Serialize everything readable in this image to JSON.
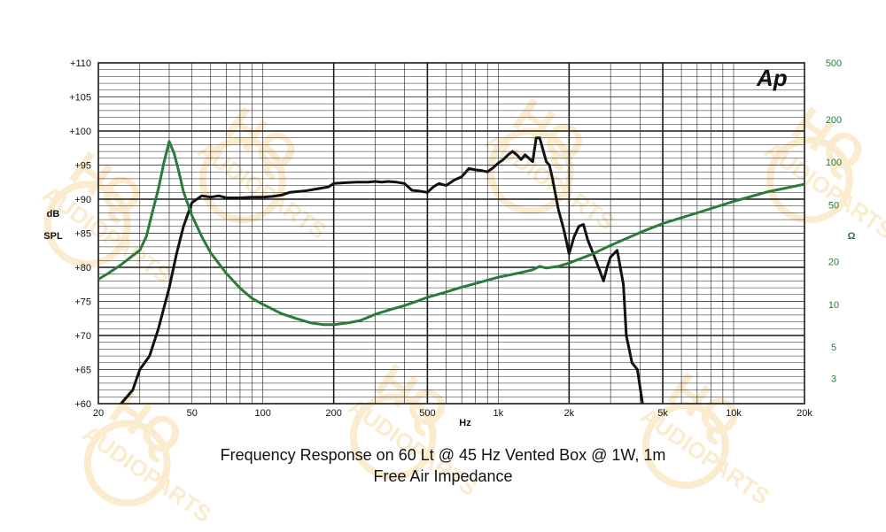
{
  "chart_data": {
    "type": "line",
    "logo": "Ap",
    "watermark": "HQ AUDIOPARTS",
    "caption_line1": "Frequency Response on 60 Lt @ 45 Hz Vented Box @ 1W, 1m",
    "caption_line2": "Free Air Impedance",
    "x_unit_label": "Hz",
    "x_scale": "log",
    "xlim": [
      20,
      20000
    ],
    "x_tick_labels": [
      [
        "20",
        20
      ],
      [
        "50",
        50
      ],
      [
        "100",
        100
      ],
      [
        "200",
        200
      ],
      [
        "500",
        500
      ],
      [
        "1k",
        1000
      ],
      [
        "2k",
        2000
      ],
      [
        "5k",
        5000
      ],
      [
        "10k",
        10000
      ],
      [
        "20k",
        20000
      ]
    ],
    "y_left_label_lines": [
      "dB",
      "SPL"
    ],
    "y_left_lim": [
      60,
      110
    ],
    "y_left_tick_labels": [
      [
        "+110",
        110
      ],
      [
        "+105",
        105
      ],
      [
        "+100",
        100
      ],
      [
        "+95",
        95
      ],
      [
        "+90",
        90
      ],
      [
        "+85",
        85
      ],
      [
        "+80",
        80
      ],
      [
        "+75",
        75
      ],
      [
        "+70",
        70
      ],
      [
        "+65",
        65
      ],
      [
        "+60",
        60
      ]
    ],
    "y_right_label": "Ω",
    "y_right_scale": "log",
    "y_right_lim": [
      2,
      500
    ],
    "y_right_tick_labels": [
      [
        "500",
        500
      ],
      [
        "200",
        200
      ],
      [
        "100",
        100
      ],
      [
        "50",
        50
      ],
      [
        "20",
        20
      ],
      [
        "10",
        10
      ],
      [
        "5",
        5
      ],
      [
        "3",
        3
      ]
    ],
    "grid": true,
    "colors": {
      "spl": "#111111",
      "impedance": "#2a7a3a",
      "grid": "#1a1a1a",
      "watermark": "#f5c878"
    },
    "series": [
      {
        "axis": "left",
        "x": [
          20,
          25,
          28,
          30,
          33,
          36,
          40,
          43,
          46,
          50,
          55,
          60,
          65,
          70,
          80,
          90,
          100,
          110,
          120,
          130,
          150,
          170,
          190,
          200,
          220,
          250,
          280,
          300,
          320,
          340,
          370,
          400,
          430,
          460,
          500,
          530,
          560,
          600,
          650,
          700,
          750,
          800,
          850,
          900,
          950,
          1000,
          1050,
          1100,
          1150,
          1200,
          1250,
          1300,
          1350,
          1400,
          1450,
          1500,
          1600,
          1650,
          1700,
          1800,
          1900,
          2000,
          2100,
          2200,
          2300,
          2400,
          2500,
          2600,
          2800,
          2900,
          3000,
          3200,
          3400,
          3500,
          3700,
          3900,
          4100,
          4200
        ],
        "y": [
          53,
          60,
          62,
          65,
          67,
          71,
          77,
          82,
          86,
          89.5,
          90.5,
          90.3,
          90.5,
          90.2,
          90.2,
          90.3,
          90.3,
          90.4,
          90.6,
          91.0,
          91.2,
          91.5,
          91.8,
          92.3,
          92.4,
          92.5,
          92.5,
          92.6,
          92.5,
          92.6,
          92.5,
          92.3,
          91.3,
          91.2,
          91.0,
          91.8,
          92.3,
          92.0,
          92.8,
          93.3,
          94.5,
          94.3,
          94.2,
          94.0,
          94.6,
          95.3,
          95.8,
          96.5,
          97.0,
          96.5,
          95.8,
          96.5,
          96.0,
          95.5,
          99.0,
          99.0,
          95.5,
          95.0,
          93.0,
          88.5,
          85.5,
          82.0,
          84.5,
          86.0,
          86.3,
          84.0,
          82.5,
          81.0,
          78.0,
          80.0,
          81.5,
          82.5,
          77.5,
          70.0,
          66.0,
          65.0,
          60.0,
          56.0
        ]
      },
      {
        "axis": "right",
        "x": [
          20,
          22,
          25,
          28,
          30,
          32,
          34,
          36,
          38,
          40,
          42,
          44,
          46,
          50,
          55,
          60,
          70,
          80,
          90,
          100,
          120,
          140,
          160,
          180,
          200,
          230,
          260,
          300,
          350,
          400,
          450,
          500,
          600,
          700,
          800,
          1000,
          1200,
          1400,
          1500,
          1600,
          1800,
          2000,
          2500,
          3000,
          4000,
          5000,
          7000,
          10000,
          14000,
          20000
        ],
        "y": [
          15,
          16.5,
          19,
          22,
          24,
          30,
          45,
          65,
          100,
          140,
          115,
          85,
          62,
          42,
          30,
          23,
          16.5,
          13,
          11,
          10,
          8.6,
          7.9,
          7.4,
          7.2,
          7.2,
          7.4,
          7.7,
          8.5,
          9.2,
          9.8,
          10.5,
          11.2,
          12.2,
          13.2,
          14.0,
          15.5,
          16.5,
          17.5,
          18.5,
          18.0,
          18.5,
          19.5,
          22.5,
          26,
          32,
          37,
          44,
          53,
          62,
          70
        ]
      }
    ]
  }
}
